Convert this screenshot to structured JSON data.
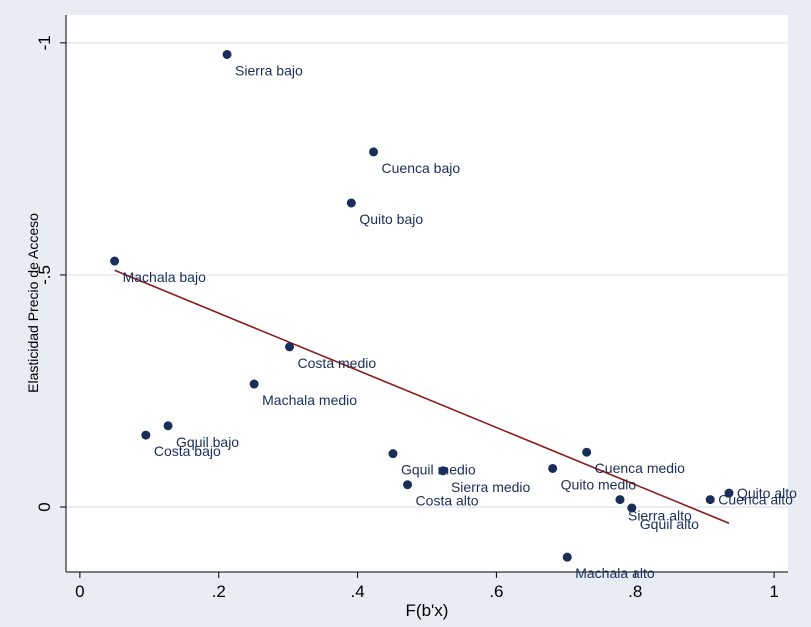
{
  "chart_data": {
    "type": "scatter",
    "title": "",
    "xlabel": "F(b'x)",
    "ylabel": "Elasticidad Precio de Acceso",
    "xlim": [
      -0.02,
      1.02
    ],
    "ylim": [
      -1.06,
      0.14
    ],
    "y_axis_reversed": true,
    "x_ticks": [
      0,
      0.2,
      0.4,
      0.6,
      0.8,
      1
    ],
    "x_tick_labels": [
      "0",
      ".2",
      ".4",
      ".6",
      ".8",
      "1"
    ],
    "y_ticks": [
      -1,
      -0.5,
      0
    ],
    "y_tick_labels": [
      "-1",
      "-.5",
      "0"
    ],
    "grid": true,
    "legend": "none",
    "colors": {
      "outer_background": "#e8edf3",
      "plot_background": "#ffffff",
      "grid": "#dfe5ec",
      "marker": "#1a2e5a",
      "label": "#1a2e5a",
      "fit_line": "#8b1a1a",
      "axis": "#000000"
    },
    "points": [
      {
        "label": "Sierra bajo",
        "x": 0.212,
        "y": -0.975,
        "pos": "below-right"
      },
      {
        "label": "Cuenca bajo",
        "x": 0.423,
        "y": -0.765,
        "pos": "below-right"
      },
      {
        "label": "Quito bajo",
        "x": 0.391,
        "y": -0.655,
        "pos": "below-right"
      },
      {
        "label": "Machala bajo",
        "x": 0.05,
        "y": -0.53,
        "pos": "below-right"
      },
      {
        "label": "Costa medio",
        "x": 0.302,
        "y": -0.345,
        "pos": "below-right"
      },
      {
        "label": "Machala medio",
        "x": 0.251,
        "y": -0.265,
        "pos": "below-right"
      },
      {
        "label": "Gquil bajo",
        "x": 0.127,
        "y": -0.175,
        "pos": "below-right"
      },
      {
        "label": "Costa bajo",
        "x": 0.095,
        "y": -0.155,
        "pos": "below-right"
      },
      {
        "label": "Gquil medio",
        "x": 0.451,
        "y": -0.115,
        "pos": "below-right"
      },
      {
        "label": "Sierra medio",
        "x": 0.523,
        "y": -0.078,
        "pos": "below-right"
      },
      {
        "label": "Costa alto",
        "x": 0.472,
        "y": -0.048,
        "pos": "below-right"
      },
      {
        "label": "Cuenca medio",
        "x": 0.73,
        "y": -0.118,
        "pos": "below-right"
      },
      {
        "label": "Quito medio",
        "x": 0.681,
        "y": -0.083,
        "pos": "below-right"
      },
      {
        "label": "Sierra alto",
        "x": 0.778,
        "y": -0.016,
        "pos": "below-right"
      },
      {
        "label": "Gquil alto",
        "x": 0.795,
        "y": 0.002,
        "pos": "below-right"
      },
      {
        "label": "Cuenca alto",
        "x": 0.908,
        "y": -0.016,
        "pos": "right"
      },
      {
        "label": "Quito alto",
        "x": 0.935,
        "y": -0.03,
        "pos": "right"
      },
      {
        "label": "Machala alto",
        "x": 0.702,
        "y": 0.108,
        "pos": "below-right"
      }
    ],
    "fit_line": {
      "x": [
        0.05,
        0.935
      ],
      "y": [
        -0.51,
        0.035
      ]
    }
  }
}
